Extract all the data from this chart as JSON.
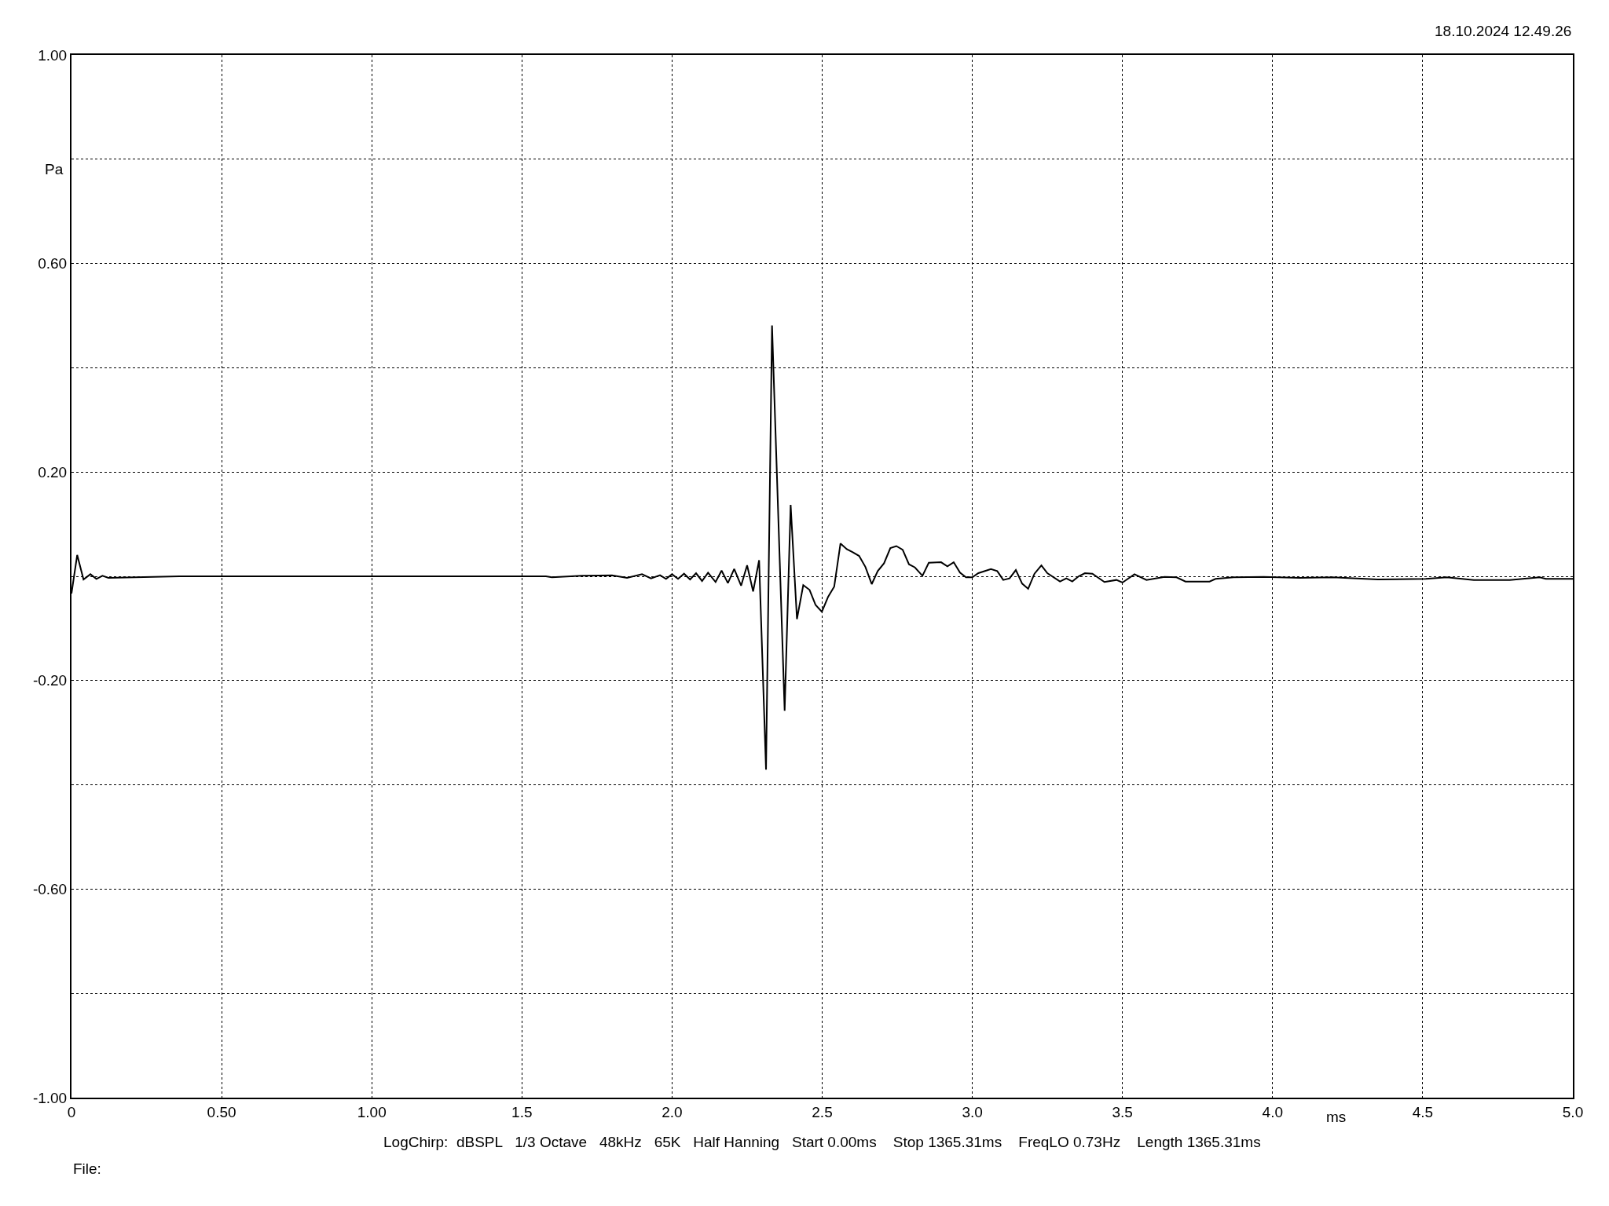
{
  "chart_data": {
    "type": "line",
    "xlabel": "ms",
    "ylabel": "Pa",
    "annotations": [
      "18.10.2024 12.49.26",
      "LogChirp:  dBSPL   1/3 Octave   48kHz   65K   Half Hanning   Start 0.00ms    Stop 1365.31ms    FreqLO 0.73Hz    Length 1365.31ms",
      "File:"
    ],
    "x": [
      0,
      0.019,
      0.04,
      0.063,
      0.083,
      0.103,
      0.123,
      0.36,
      1.58,
      1.6,
      1.7,
      1.8,
      1.85,
      1.9,
      1.93,
      1.96,
      1.98,
      2.0,
      2.02,
      2.04,
      2.06,
      2.08,
      2.1,
      2.12,
      2.145,
      2.165,
      2.186,
      2.207,
      2.23,
      2.25,
      2.27,
      2.29,
      2.313,
      2.333,
      2.375,
      2.395,
      2.416,
      2.437,
      2.458,
      2.478,
      2.499,
      2.52,
      2.54,
      2.561,
      2.582,
      2.602,
      2.623,
      2.644,
      2.665,
      2.685,
      2.706,
      2.727,
      2.747,
      2.768,
      2.789,
      2.809,
      2.834,
      2.855,
      2.896,
      2.917,
      2.938,
      2.959,
      2.979,
      3.0,
      3.02,
      3.062,
      3.083,
      3.103,
      3.124,
      3.145,
      3.166,
      3.186,
      3.207,
      3.23,
      3.25,
      3.292,
      3.313,
      3.333,
      3.354,
      3.375,
      3.4,
      3.44,
      3.48,
      3.5,
      3.54,
      3.58,
      3.64,
      3.68,
      3.71,
      3.79,
      3.81,
      3.87,
      3.97,
      4.09,
      4.2,
      4.35,
      4.51,
      4.58,
      4.67,
      4.79,
      4.89,
      4.91,
      4.98,
      5.0
    ],
    "series": [
      {
        "color": "#000000",
        "values": [
          -0.033,
          0.041,
          -0.006,
          0.004,
          -0.005,
          0.001,
          -0.003,
          0,
          0,
          -0.002,
          0.001,
          0.002,
          -0.003,
          0.004,
          -0.004,
          0.002,
          -0.005,
          0.004,
          -0.005,
          0.005,
          -0.006,
          0.006,
          -0.009,
          0.007,
          -0.011,
          0.011,
          -0.013,
          0.014,
          -0.018,
          0.021,
          -0.029,
          0.031,
          -0.371,
          0.481,
          -0.258,
          0.137,
          -0.082,
          -0.017,
          -0.026,
          -0.055,
          -0.068,
          -0.039,
          -0.02,
          0.063,
          0.052,
          0.046,
          0.039,
          0.018,
          -0.015,
          0.01,
          0.025,
          0.054,
          0.058,
          0.051,
          0.023,
          0.017,
          0.001,
          0.026,
          0.027,
          0.019,
          0.027,
          0.007,
          -0.002,
          -0.002,
          0.006,
          0.014,
          0.01,
          -0.007,
          -0.004,
          0.012,
          -0.014,
          -0.024,
          0.005,
          0.021,
          0.006,
          -0.01,
          -0.004,
          -0.01,
          0,
          0.006,
          0.005,
          -0.011,
          -0.007,
          -0.012,
          0.004,
          -0.007,
          -0.001,
          -0.002,
          -0.01,
          -0.01,
          -0.005,
          -0.002,
          -0.001,
          -0.003,
          -0.002,
          -0.006,
          -0.005,
          -0.002,
          -0.007,
          -0.007,
          -0.002,
          -0.005,
          -0.005,
          -0.005
        ]
      }
    ],
    "xlim": [
      0,
      5.0
    ],
    "xticks": [
      {
        "value": 0,
        "label": "0"
      },
      {
        "value": 0.5,
        "label": "0.50"
      },
      {
        "value": 1,
        "label": "1.00"
      },
      1.5,
      {
        "value": 2,
        "label": "2.0"
      },
      2.5,
      {
        "value": 3,
        "label": "3.0"
      },
      3.5,
      {
        "value": 4,
        "label": "4.0"
      },
      4.5,
      {
        "value": 5,
        "label": "5.0"
      }
    ],
    "ylim": [
      -1.0,
      1.0
    ],
    "yticks": [
      {
        "value": -1,
        "label": "-1.00"
      },
      {
        "value": -0.8,
        "label": null
      },
      {
        "value": -0.6,
        "label": "-0.60"
      },
      {
        "value": -0.4,
        "label": null
      },
      {
        "value": -0.2,
        "label": "-0.20"
      },
      {
        "value": 0,
        "label": null
      },
      {
        "value": 0.2,
        "label": "0.20"
      },
      {
        "value": 0.4,
        "label": null
      },
      {
        "value": 0.6,
        "label": "0.60"
      },
      {
        "value": 0.8,
        "label": null
      },
      {
        "value": 1,
        "label": "1.00"
      }
    ],
    "grid": true,
    "line_style": "solid",
    "marker": "none"
  }
}
